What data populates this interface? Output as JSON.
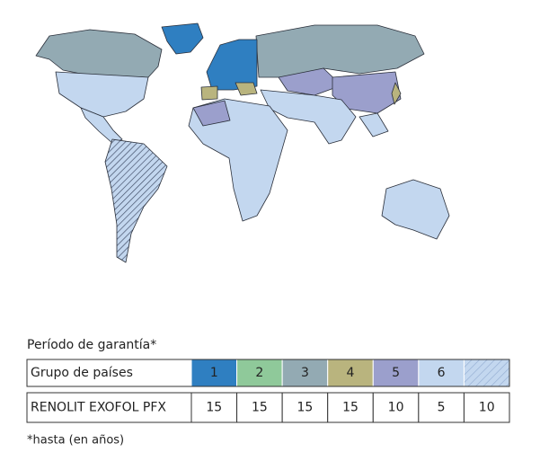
{
  "title": "Período de garantía*",
  "table": {
    "header": "Grupo de países",
    "groups": [
      {
        "label": "1",
        "color": "#2f7fc1"
      },
      {
        "label": "2",
        "color": "#8fc99a"
      },
      {
        "label": "3",
        "color": "#93aab3"
      },
      {
        "label": "4",
        "color": "#b9b47e"
      },
      {
        "label": "5",
        "color": "#9b9fcc"
      },
      {
        "label": "6",
        "color": "#c3d7ef"
      },
      {
        "color": "#c3d7ef",
        "pattern": "hatch"
      }
    ],
    "row_label": "RENOLIT EXOFOL PFX",
    "values": [
      15,
      15,
      15,
      15,
      10,
      5,
      10
    ]
  },
  "footnote": "*hasta (en años)"
}
